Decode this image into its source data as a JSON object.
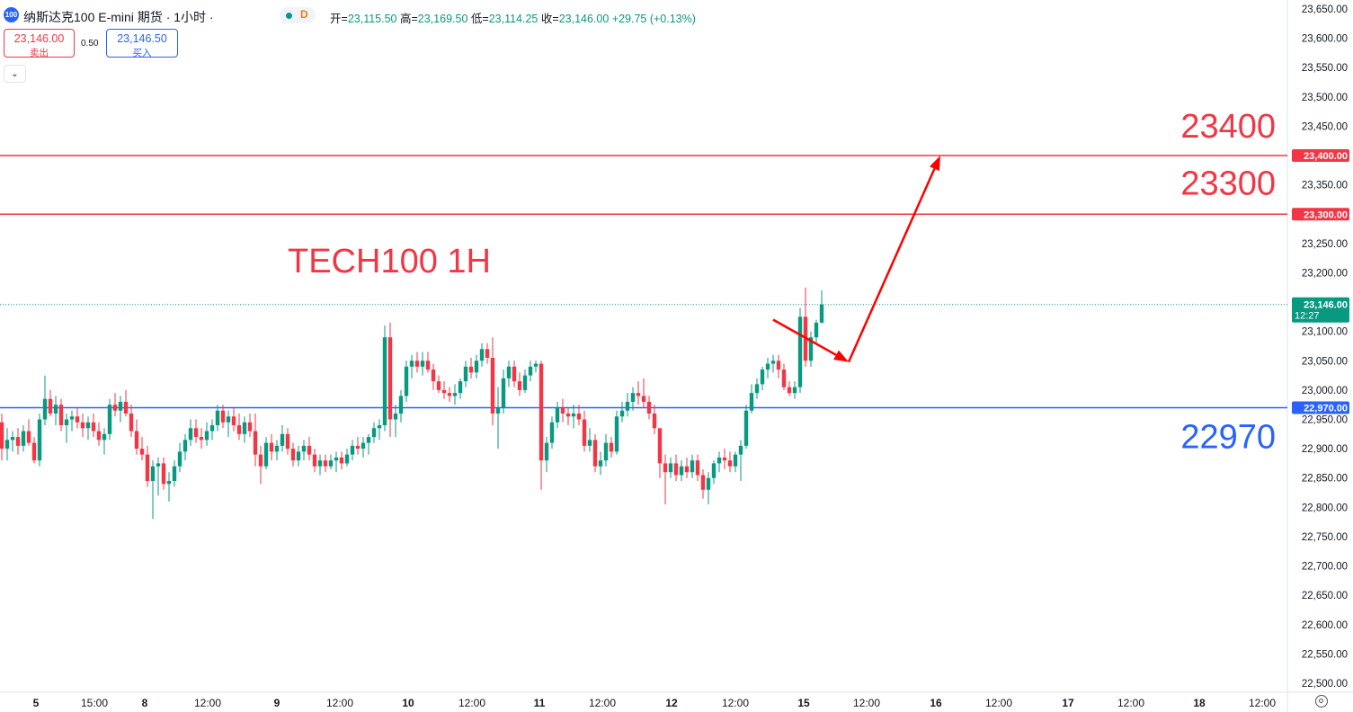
{
  "header": {
    "logo_text": "100",
    "symbol_title": "纳斯达克100 E-mini 期货 · 1小时 ·",
    "status_label": "D",
    "ohlc": {
      "open_label": "开=",
      "open": "23,115.50",
      "high_label": "高=",
      "high": "23,169.50",
      "low_label": "低=",
      "low": "23,114.25",
      "close_label": "收=",
      "close": "23,146.00",
      "change": "+29.75 (+0.13%)"
    },
    "bid_price": "23,146.00",
    "bid_label": "卖出",
    "spread": "0.50",
    "ask_price": "23,146.50",
    "ask_label": "买入",
    "collapse_icon": "chevron-down-icon"
  },
  "colors": {
    "up": "#089981",
    "down": "#f23645",
    "resistance": "#f23645",
    "support": "#2962ff",
    "arrow": "#ff0000",
    "grid_text": "#131722"
  },
  "chart_data": {
    "type": "candlestick",
    "title": "TECH100 1H",
    "ylim": [
      22475,
      23675
    ],
    "y_ticks": [
      22500,
      22550,
      22600,
      22650,
      22700,
      22750,
      22800,
      22850,
      22900,
      22950,
      23000,
      23050,
      23100,
      23150,
      23200,
      23250,
      23300,
      23350,
      23400,
      23450,
      23500,
      23550,
      23600,
      23650
    ],
    "y_tick_labels": [
      "22,500.00",
      "22,550.00",
      "22,600.00",
      "22,650.00",
      "22,700.00",
      "22,750.00",
      "22,800.00",
      "22,850.00",
      "22,900.00",
      "22,950.00",
      "23,000.00",
      "23,050.00",
      "23,100.00",
      "23,150.00",
      "23,200.00",
      "23,250.00",
      "23,300.00",
      "23,350.00",
      "23,400.00",
      "23,450.00",
      "23,500.00",
      "23,550.00",
      "23,600.00",
      "23,650.00"
    ],
    "x_labels": [
      "5",
      "15:00",
      "8",
      "12:00",
      "9",
      "12:00",
      "10",
      "12:00",
      "11",
      "12:00",
      "12",
      "12:00",
      "15",
      "12:00",
      "16",
      "12:00",
      "17",
      "12:00",
      "18",
      "12:00"
    ],
    "current_price": 23146.0,
    "current_price_label": "23,146.00",
    "countdown": "12:27",
    "levels": [
      {
        "value": 23400,
        "axis_label": "23,400.00",
        "text": "23400",
        "color": "#f23645"
      },
      {
        "value": 23300,
        "axis_label": "23,300.00",
        "text": "23300",
        "color": "#f23645"
      },
      {
        "value": 22970,
        "axis_label": "22,970.00",
        "text": "22970",
        "color": "#2962ff"
      }
    ],
    "projection": {
      "segment1": {
        "from": {
          "bar": 143,
          "price": 23120
        },
        "to": {
          "bar": 157,
          "price": 23048
        }
      },
      "segment2": {
        "from": {
          "bar": 157,
          "price": 23048
        },
        "to": {
          "bar": 174,
          "price": 23400
        }
      }
    },
    "candles_ohlc": [
      [
        22945,
        22960,
        22880,
        22900
      ],
      [
        22900,
        22935,
        22880,
        22915
      ],
      [
        22915,
        22930,
        22895,
        22920
      ],
      [
        22920,
        22935,
        22890,
        22905
      ],
      [
        22905,
        22940,
        22895,
        22930
      ],
      [
        22930,
        22950,
        22905,
        22910
      ],
      [
        22910,
        22920,
        22875,
        22880
      ],
      [
        22880,
        22960,
        22870,
        22950
      ],
      [
        22950,
        23025,
        22940,
        22985
      ],
      [
        22985,
        23000,
        22955,
        22960
      ],
      [
        22960,
        22990,
        22940,
        22975
      ],
      [
        22975,
        22985,
        22930,
        22940
      ],
      [
        22940,
        22960,
        22910,
        22950
      ],
      [
        22950,
        22965,
        22930,
        22955
      ],
      [
        22955,
        22970,
        22935,
        22945
      ],
      [
        22945,
        22960,
        22920,
        22935
      ],
      [
        22935,
        22955,
        22915,
        22945
      ],
      [
        22945,
        22960,
        22920,
        22930
      ],
      [
        22930,
        22945,
        22905,
        22915
      ],
      [
        22915,
        22935,
        22890,
        22925
      ],
      [
        22925,
        22985,
        22915,
        22975
      ],
      [
        22975,
        22995,
        22955,
        22965
      ],
      [
        22965,
        22990,
        22945,
        22980
      ],
      [
        22980,
        23000,
        22955,
        22960
      ],
      [
        22960,
        22975,
        22920,
        22930
      ],
      [
        22930,
        22950,
        22890,
        22900
      ],
      [
        22900,
        22920,
        22880,
        22890
      ],
      [
        22890,
        22905,
        22835,
        22845
      ],
      [
        22845,
        22880,
        22780,
        22870
      ],
      [
        22870,
        22885,
        22820,
        22875
      ],
      [
        22875,
        22885,
        22830,
        22840
      ],
      [
        22840,
        22860,
        22810,
        22845
      ],
      [
        22845,
        22880,
        22835,
        22870
      ],
      [
        22870,
        22910,
        22860,
        22895
      ],
      [
        22895,
        22925,
        22880,
        22915
      ],
      [
        22915,
        22950,
        22905,
        22935
      ],
      [
        22935,
        22950,
        22910,
        22920
      ],
      [
        22920,
        22935,
        22900,
        22915
      ],
      [
        22915,
        22945,
        22905,
        22930
      ],
      [
        22930,
        22950,
        22915,
        22940
      ],
      [
        22940,
        22975,
        22930,
        22965
      ],
      [
        22965,
        22975,
        22935,
        22945
      ],
      [
        22945,
        22965,
        22920,
        22955
      ],
      [
        22955,
        22970,
        22930,
        22940
      ],
      [
        22940,
        22960,
        22915,
        22925
      ],
      [
        22925,
        22955,
        22910,
        22945
      ],
      [
        22945,
        22960,
        22920,
        22930
      ],
      [
        22930,
        22960,
        22870,
        22890
      ],
      [
        22890,
        22905,
        22840,
        22870
      ],
      [
        22870,
        22920,
        22865,
        22910
      ],
      [
        22910,
        22925,
        22880,
        22895
      ],
      [
        22895,
        22915,
        22880,
        22905
      ],
      [
        22905,
        22940,
        22895,
        22925
      ],
      [
        22925,
        22935,
        22890,
        22900
      ],
      [
        22900,
        22910,
        22870,
        22880
      ],
      [
        22880,
        22905,
        22870,
        22895
      ],
      [
        22895,
        22915,
        22880,
        22905
      ],
      [
        22905,
        22920,
        22880,
        22890
      ],
      [
        22890,
        22900,
        22860,
        22870
      ],
      [
        22870,
        22890,
        22855,
        22880
      ],
      [
        22880,
        22890,
        22860,
        22870
      ],
      [
        22870,
        22890,
        22865,
        22880
      ],
      [
        22880,
        22895,
        22860,
        22885
      ],
      [
        22885,
        22895,
        22865,
        22875
      ],
      [
        22875,
        22900,
        22870,
        22890
      ],
      [
        22890,
        22915,
        22880,
        22905
      ],
      [
        22905,
        22920,
        22890,
        22900
      ],
      [
        22900,
        22920,
        22885,
        22910
      ],
      [
        22910,
        22925,
        22890,
        22920
      ],
      [
        22920,
        22945,
        22910,
        22935
      ],
      [
        22935,
        22950,
        22915,
        22940
      ],
      [
        22940,
        23110,
        22930,
        23090
      ],
      [
        23090,
        23115,
        22920,
        22950
      ],
      [
        22950,
        22975,
        22920,
        22960
      ],
      [
        22960,
        23000,
        22945,
        22990
      ],
      [
        22990,
        23050,
        22980,
        23040
      ],
      [
        23040,
        23060,
        23020,
        23050
      ],
      [
        23050,
        23065,
        23030,
        23040
      ],
      [
        23040,
        23065,
        23025,
        23050
      ],
      [
        23050,
        23065,
        23030,
        23035
      ],
      [
        23035,
        23045,
        23000,
        23015
      ],
      [
        23015,
        23025,
        22995,
        23000
      ],
      [
        23000,
        23015,
        22985,
        22995
      ],
      [
        22995,
        23005,
        22980,
        22990
      ],
      [
        22990,
        23010,
        22975,
        22995
      ],
      [
        22995,
        23020,
        22985,
        23015
      ],
      [
        23015,
        23050,
        23005,
        23040
      ],
      [
        23040,
        23055,
        23020,
        23030
      ],
      [
        23030,
        23060,
        23020,
        23050
      ],
      [
        23050,
        23080,
        23040,
        23070
      ],
      [
        23070,
        23080,
        23045,
        23055
      ],
      [
        23055,
        23090,
        22940,
        22960
      ],
      [
        22960,
        23005,
        22900,
        22970
      ],
      [
        22970,
        23035,
        22960,
        23020
      ],
      [
        23020,
        23050,
        23005,
        23040
      ],
      [
        23040,
        23050,
        23005,
        23015
      ],
      [
        23015,
        23030,
        22990,
        23000
      ],
      [
        23000,
        23035,
        22995,
        23025
      ],
      [
        23025,
        23050,
        23015,
        23040
      ],
      [
        23040,
        23050,
        23030,
        23045
      ],
      [
        23045,
        23050,
        22830,
        22880
      ],
      [
        22880,
        22920,
        22860,
        22910
      ],
      [
        22910,
        22955,
        22900,
        22945
      ],
      [
        22945,
        22980,
        22935,
        22970
      ],
      [
        22970,
        22985,
        22945,
        22960
      ],
      [
        22960,
        22970,
        22940,
        22955
      ],
      [
        22955,
        22975,
        22935,
        22960
      ],
      [
        22960,
        22975,
        22940,
        22950
      ],
      [
        22950,
        22965,
        22895,
        22905
      ],
      [
        22905,
        22935,
        22895,
        22915
      ],
      [
        22915,
        22925,
        22860,
        22870
      ],
      [
        22870,
        22895,
        22855,
        22880
      ],
      [
        22880,
        22925,
        22870,
        22910
      ],
      [
        22910,
        22920,
        22885,
        22895
      ],
      [
        22895,
        22965,
        22890,
        22955
      ],
      [
        22955,
        22980,
        22945,
        22965
      ],
      [
        22965,
        22995,
        22955,
        22980
      ],
      [
        22980,
        23005,
        22965,
        22995
      ],
      [
        22995,
        23015,
        22975,
        22990
      ],
      [
        22990,
        23020,
        22970,
        22980
      ],
      [
        22980,
        22990,
        22950,
        22960
      ],
      [
        22960,
        22975,
        22925,
        22935
      ],
      [
        22935,
        22890,
        22850,
        22875
      ],
      [
        22875,
        22890,
        22805,
        22860
      ],
      [
        22860,
        22885,
        22850,
        22875
      ],
      [
        22875,
        22890,
        22845,
        22855
      ],
      [
        22855,
        22880,
        22845,
        22870
      ],
      [
        22870,
        22885,
        22850,
        22860
      ],
      [
        22860,
        22890,
        22850,
        22880
      ],
      [
        22880,
        22890,
        22845,
        22855
      ],
      [
        22855,
        22865,
        22815,
        22830
      ],
      [
        22830,
        22860,
        22805,
        22850
      ],
      [
        22850,
        22880,
        22840,
        22875
      ],
      [
        22875,
        22895,
        22860,
        22885
      ],
      [
        22885,
        22900,
        22865,
        22880
      ],
      [
        22880,
        22895,
        22860,
        22870
      ],
      [
        22870,
        22895,
        22860,
        22890
      ],
      [
        22890,
        22915,
        22845,
        22905
      ],
      [
        22905,
        22975,
        22900,
        22965
      ],
      [
        22965,
        23010,
        22960,
        22995
      ],
      [
        22995,
        23020,
        22985,
        23010
      ],
      [
        23010,
        23040,
        23000,
        23035
      ],
      [
        23035,
        23055,
        23020,
        23045
      ],
      [
        23045,
        23060,
        23030,
        23050
      ],
      [
        23050,
        23060,
        23020,
        23035
      ],
      [
        23035,
        23045,
        23000,
        23005
      ],
      [
        23005,
        23015,
        22990,
        22995
      ],
      [
        22995,
        23015,
        22985,
        23005
      ],
      [
        23005,
        23140,
        22995,
        23125
      ],
      [
        23125,
        23175,
        23040,
        23050
      ],
      [
        23050,
        23100,
        23040,
        23090
      ],
      [
        23090,
        23120,
        23080,
        23115
      ],
      [
        23115,
        23170,
        23114,
        23146
      ]
    ]
  }
}
